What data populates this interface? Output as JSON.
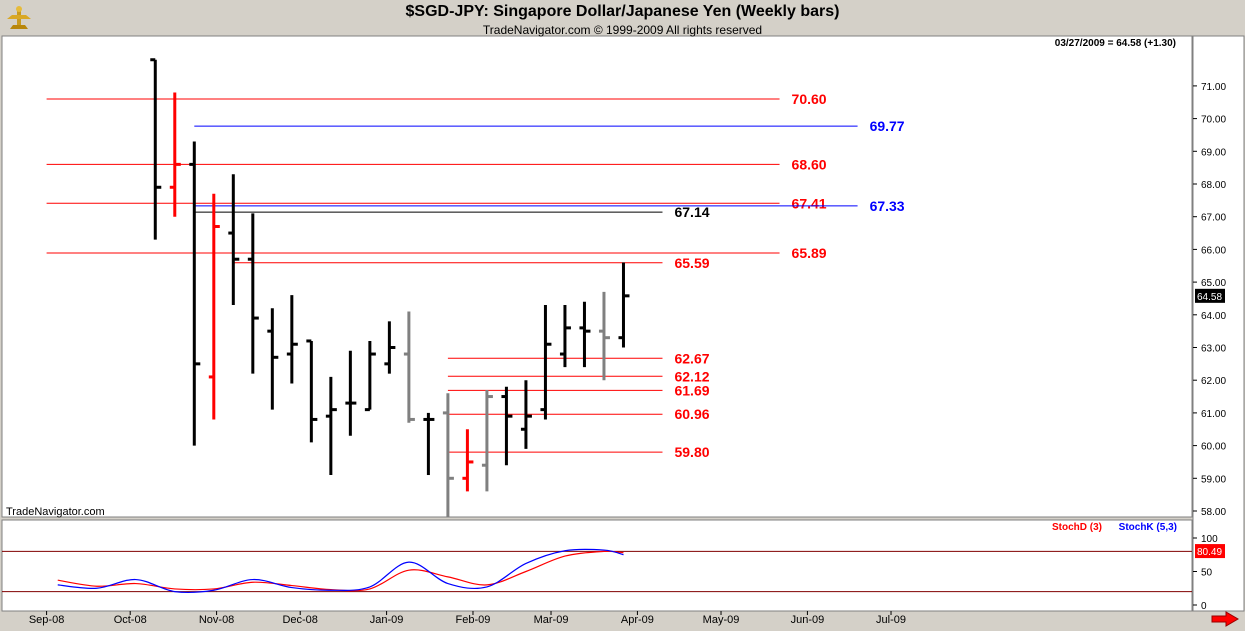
{
  "window": {
    "title": "$SGD-JPY:  Singapore Dollar/Japanese Yen  (Weekly bars)",
    "copyright": "TradeNavigator.com © 1999-2009 All rights reserved",
    "watermark": "TradeNavigator.com",
    "quote": "03/27/2009 = 64.58 (+1.30)"
  },
  "chart_data": [
    {
      "type": "ohlc",
      "title": "$SGD-JPY:  Singapore Dollar/Japanese Yen  (Weekly bars)",
      "ylim": [
        57.5,
        71.5
      ],
      "y_ticks": [
        "58.00",
        "59.00",
        "60.00",
        "61.00",
        "62.00",
        "63.00",
        "64.00",
        "65.00",
        "66.00",
        "67.00",
        "68.00",
        "69.00",
        "70.00",
        "71.00"
      ],
      "x_ticks": [
        "Sep-08",
        "Oct-08",
        "Nov-08",
        "Dec-08",
        "Jan-09",
        "Feb-09",
        "Mar-09",
        "Apr-09",
        "May-09",
        "Jun-09",
        "Jul-09"
      ],
      "last_price": "64.58",
      "bars": [
        {
          "date": "2008-10-10",
          "high": 71.8,
          "low": 66.3,
          "open": 71.8,
          "close": 67.9,
          "color": "#000000"
        },
        {
          "date": "2008-10-17",
          "high": 70.8,
          "low": 67.0,
          "open": 67.9,
          "close": 68.6,
          "color": "#ff0000"
        },
        {
          "date": "2008-10-24",
          "high": 69.3,
          "low": 60.0,
          "open": 68.6,
          "close": 62.5,
          "color": "#000000"
        },
        {
          "date": "2008-10-31",
          "high": 67.7,
          "low": 60.8,
          "open": 62.1,
          "close": 66.7,
          "color": "#ff0000"
        },
        {
          "date": "2008-11-07",
          "high": 68.3,
          "low": 64.3,
          "open": 66.5,
          "close": 65.7,
          "color": "#000000"
        },
        {
          "date": "2008-11-14",
          "high": 67.1,
          "low": 62.2,
          "open": 65.7,
          "close": 63.9,
          "color": "#000000"
        },
        {
          "date": "2008-11-21",
          "high": 64.2,
          "low": 61.1,
          "open": 63.5,
          "close": 62.7,
          "color": "#000000"
        },
        {
          "date": "2008-11-28",
          "high": 64.6,
          "low": 61.9,
          "open": 62.8,
          "close": 63.1,
          "color": "#000000"
        },
        {
          "date": "2008-12-05",
          "high": 63.2,
          "low": 60.1,
          "open": 63.2,
          "close": 60.8,
          "color": "#000000"
        },
        {
          "date": "2008-12-12",
          "high": 62.1,
          "low": 59.1,
          "open": 60.9,
          "close": 61.1,
          "color": "#000000"
        },
        {
          "date": "2008-12-19",
          "high": 62.9,
          "low": 60.3,
          "open": 61.3,
          "close": 61.3,
          "color": "#000000"
        },
        {
          "date": "2008-12-26",
          "high": 63.2,
          "low": 61.1,
          "open": 61.1,
          "close": 62.8,
          "color": "#000000"
        },
        {
          "date": "2009-01-02",
          "high": 63.8,
          "low": 62.2,
          "open": 62.5,
          "close": 63.0,
          "color": "#000000"
        },
        {
          "date": "2009-01-09",
          "high": 64.1,
          "low": 60.7,
          "open": 62.8,
          "close": 60.8,
          "color": "#808080"
        },
        {
          "date": "2009-01-16",
          "high": 61.0,
          "low": 59.1,
          "open": 60.8,
          "close": 60.8,
          "color": "#000000"
        },
        {
          "date": "2009-01-23",
          "high": 61.6,
          "low": 57.8,
          "open": 61.0,
          "close": 59.0,
          "color": "#808080"
        },
        {
          "date": "2009-01-30",
          "high": 60.5,
          "low": 58.6,
          "open": 59.0,
          "close": 59.5,
          "color": "#ff0000"
        },
        {
          "date": "2009-02-06",
          "high": 61.7,
          "low": 58.6,
          "open": 59.4,
          "close": 61.5,
          "color": "#808080"
        },
        {
          "date": "2009-02-13",
          "high": 61.8,
          "low": 59.4,
          "open": 61.5,
          "close": 60.9,
          "color": "#000000"
        },
        {
          "date": "2009-02-20",
          "high": 62.0,
          "low": 59.9,
          "open": 60.5,
          "close": 60.9,
          "color": "#000000"
        },
        {
          "date": "2009-02-27",
          "high": 64.3,
          "low": 60.8,
          "open": 61.1,
          "close": 63.1,
          "color": "#000000"
        },
        {
          "date": "2009-03-06",
          "high": 64.3,
          "low": 62.4,
          "open": 62.8,
          "close": 63.6,
          "color": "#000000"
        },
        {
          "date": "2009-03-13",
          "high": 64.4,
          "low": 62.4,
          "open": 63.6,
          "close": 63.5,
          "color": "#000000"
        },
        {
          "date": "2009-03-20",
          "high": 64.7,
          "low": 62.0,
          "open": 63.5,
          "close": 63.3,
          "color": "#808080"
        },
        {
          "date": "2009-03-27",
          "high": 65.6,
          "low": 63.0,
          "open": 63.3,
          "close": 64.58,
          "color": "#000000"
        }
      ],
      "levels": [
        {
          "value": 70.6,
          "label": "70.60",
          "color": "#ff0000",
          "start": "2008-09-01",
          "end": "2009-05-22"
        },
        {
          "value": 69.77,
          "label": "69.77",
          "color": "#0000ff",
          "start": "2008-10-24",
          "end": "2009-06-19"
        },
        {
          "value": 68.6,
          "label": "68.60",
          "color": "#ff0000",
          "start": "2008-09-01",
          "end": "2009-05-22"
        },
        {
          "value": 67.41,
          "label": "67.41",
          "color": "#ff0000",
          "start": "2008-09-01",
          "end": "2009-05-22"
        },
        {
          "value": 67.33,
          "label": "67.33",
          "color": "#0000ff",
          "start": "2008-10-24",
          "end": "2009-06-19"
        },
        {
          "value": 67.14,
          "label": "67.14",
          "color": "#000000",
          "start": "2008-10-24",
          "end": "2009-04-10"
        },
        {
          "value": 65.89,
          "label": "65.89",
          "color": "#ff0000",
          "start": "2008-09-01",
          "end": "2009-05-22"
        },
        {
          "value": 65.59,
          "label": "65.59",
          "color": "#ff0000",
          "start": "2008-11-07",
          "end": "2009-04-10"
        },
        {
          "value": 62.67,
          "label": "62.67",
          "color": "#ff0000",
          "start": "2009-01-23",
          "end": "2009-04-10"
        },
        {
          "value": 62.12,
          "label": "62.12",
          "color": "#ff0000",
          "start": "2009-01-23",
          "end": "2009-04-10"
        },
        {
          "value": 61.69,
          "label": "61.69",
          "color": "#ff0000",
          "start": "2009-01-23",
          "end": "2009-04-10"
        },
        {
          "value": 60.96,
          "label": "60.96",
          "color": "#ff0000",
          "start": "2009-01-23",
          "end": "2009-04-10"
        },
        {
          "value": 59.8,
          "label": "59.80",
          "color": "#ff0000",
          "start": "2009-01-23",
          "end": "2009-04-10"
        }
      ]
    },
    {
      "type": "line",
      "ylim": [
        0,
        100
      ],
      "y_ticks": [
        "0",
        "50",
        "100"
      ],
      "reference_lines": [
        20,
        80
      ],
      "last_value": "80.49",
      "series": [
        {
          "name": "StochD (3)",
          "color": "#ff0000",
          "values": [
            [
              "2008-09-05",
              37
            ],
            [
              "2008-09-19",
              28
            ],
            [
              "2008-10-03",
              32
            ],
            [
              "2008-10-17",
              24
            ],
            [
              "2008-10-31",
              24
            ],
            [
              "2008-11-14",
              34
            ],
            [
              "2008-11-28",
              29
            ],
            [
              "2008-12-12",
              23
            ],
            [
              "2008-12-26",
              24
            ],
            [
              "2009-01-09",
              52
            ],
            [
              "2009-01-23",
              42
            ],
            [
              "2009-02-06",
              30
            ],
            [
              "2009-02-20",
              50
            ],
            [
              "2009-03-06",
              73
            ],
            [
              "2009-03-20",
              80
            ],
            [
              "2009-03-27",
              78
            ]
          ]
        },
        {
          "name": "StochK (5,3)",
          "color": "#0000ff",
          "values": [
            [
              "2008-09-05",
              30
            ],
            [
              "2008-09-19",
              25
            ],
            [
              "2008-10-03",
              38
            ],
            [
              "2008-10-17",
              20
            ],
            [
              "2008-10-31",
              22
            ],
            [
              "2008-11-14",
              38
            ],
            [
              "2008-11-28",
              26
            ],
            [
              "2008-12-12",
              22
            ],
            [
              "2008-12-26",
              27
            ],
            [
              "2009-01-09",
              64
            ],
            [
              "2009-01-23",
              32
            ],
            [
              "2009-02-06",
              27
            ],
            [
              "2009-02-20",
              62
            ],
            [
              "2009-03-06",
              81
            ],
            [
              "2009-03-20",
              82
            ],
            [
              "2009-03-27",
              75
            ]
          ]
        }
      ]
    }
  ]
}
